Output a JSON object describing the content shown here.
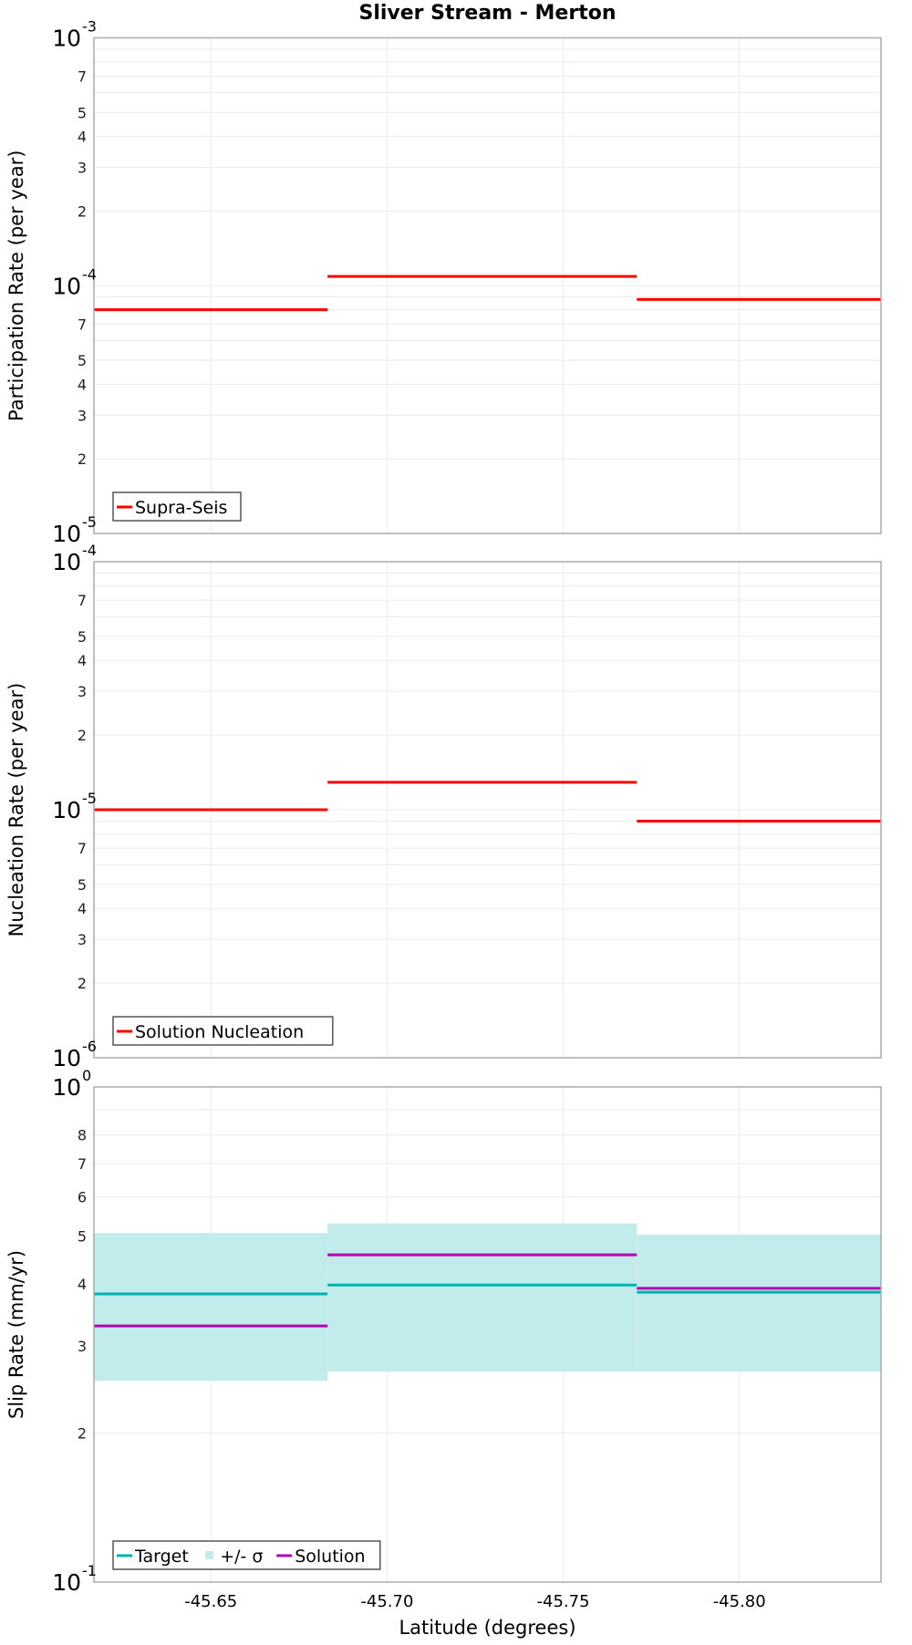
{
  "chart_data": {
    "title": "Sliver Stream - Merton",
    "type": "line",
    "xlabel": "Latitude (degrees)",
    "xlim": [
      -45.6168,
      -45.8402
    ],
    "x_ticks": [
      -45.65,
      -45.7,
      -45.75,
      -45.8
    ],
    "x_tick_labels": [
      "-45.65",
      "-45.70",
      "-45.75",
      "-45.80"
    ],
    "segment_bounds": [
      -45.6168,
      -45.6831,
      -45.7709,
      -45.8402
    ],
    "panels": [
      {
        "name": "participation",
        "ylabel": "Participation Rate (per year)",
        "yscale": "log",
        "ylim": [
          1e-05,
          0.001
        ],
        "decade_labels": [
          {
            "base": "10",
            "exp": "-3",
            "value": 0.001
          },
          {
            "base": "10",
            "exp": "-4",
            "value": 0.0001
          },
          {
            "base": "10",
            "exp": "-5",
            "value": 1e-05
          }
        ],
        "minor_labels": [
          "2",
          "3",
          "4",
          "5",
          "7"
        ],
        "legend": [
          {
            "label": "Supra-Seis",
            "color": "#ff0000",
            "kind": "line"
          }
        ],
        "series": [
          {
            "name": "Supra-Seis",
            "color": "#ff0000",
            "kind": "step",
            "values": [
              8e-05,
              0.000109,
              8.8e-05
            ]
          }
        ]
      },
      {
        "name": "nucleation",
        "ylabel": "Nucleation Rate (per year)",
        "yscale": "log",
        "ylim": [
          1e-06,
          0.0001
        ],
        "decade_labels": [
          {
            "base": "10",
            "exp": "-4",
            "value": 0.0001
          },
          {
            "base": "10",
            "exp": "-5",
            "value": 1e-05
          },
          {
            "base": "10",
            "exp": "-6",
            "value": 1e-06
          }
        ],
        "minor_labels": [
          "2",
          "3",
          "4",
          "5",
          "7"
        ],
        "legend": [
          {
            "label": "Solution Nucleation",
            "color": "#ff0000",
            "kind": "line"
          }
        ],
        "series": [
          {
            "name": "Solution Nucleation",
            "color": "#ff0000",
            "kind": "step",
            "values": [
              1e-05,
              1.29e-05,
              9e-06
            ]
          }
        ]
      },
      {
        "name": "slip-rate",
        "ylabel": "Slip Rate (mm/yr)",
        "yscale": "log",
        "ylim": [
          0.1,
          1.0
        ],
        "decade_labels": [
          {
            "base": "10",
            "exp": "0",
            "value": 1.0
          },
          {
            "base": "10",
            "exp": "-1",
            "value": 0.1
          }
        ],
        "minor_labels": [
          "2",
          "3",
          "4",
          "5",
          "6",
          "7",
          "8"
        ],
        "legend": [
          {
            "label": "Target",
            "color": "#00b2b2",
            "kind": "line"
          },
          {
            "label": "+/- σ",
            "color": "#c2ecec",
            "kind": "box"
          },
          {
            "label": "Solution",
            "color": "#b200b2",
            "kind": "line"
          }
        ],
        "series": [
          {
            "name": "+/- σ",
            "color": "#c2ecec",
            "kind": "band",
            "lower": [
              0.255,
              0.266,
              0.266
            ],
            "upper": [
              0.507,
              0.53,
              0.503
            ]
          },
          {
            "name": "Target",
            "color": "#00b2b2",
            "kind": "step",
            "values": [
              0.382,
              0.398,
              0.385
            ]
          },
          {
            "name": "Solution",
            "color": "#b200b2",
            "kind": "step",
            "values": [
              0.329,
              0.458,
              0.392
            ]
          }
        ]
      }
    ],
    "grid": true,
    "legend_position": "lower-left"
  },
  "layout_colors": {
    "frame": "#aaaaaa",
    "grid": "#ebebeb"
  }
}
